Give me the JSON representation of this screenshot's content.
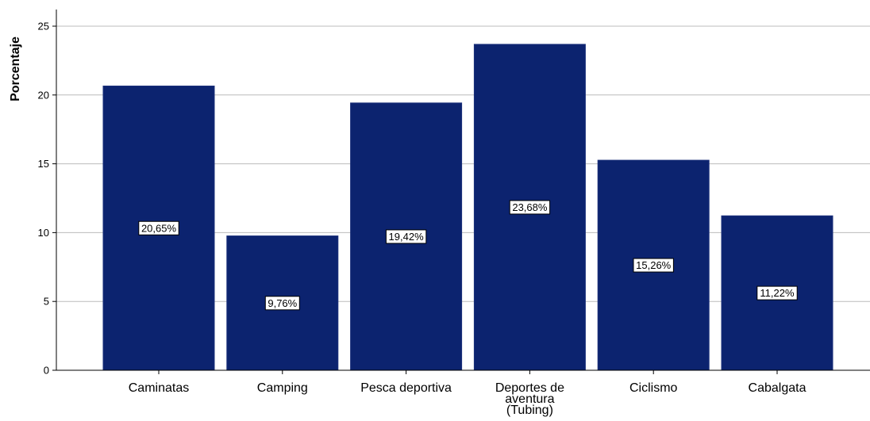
{
  "chart_data": {
    "type": "bar",
    "ylabel": "Porcentaje",
    "xlabel": "",
    "ylim": [
      0,
      25
    ],
    "yticks": [
      0,
      5,
      10,
      15,
      20,
      25
    ],
    "ytick_labels": [
      "0",
      "5",
      "10",
      "15",
      "20",
      "25"
    ],
    "grid": true,
    "categories": [
      "Caminatas",
      "Camping",
      "Pesca deportiva",
      "Deportes de aventura (Tubing)",
      "Ciclismo",
      "Cabalgata"
    ],
    "category_label_lines": [
      [
        "Caminatas"
      ],
      [
        "Camping"
      ],
      [
        "Pesca deportiva"
      ],
      [
        "Deportes de",
        "aventura",
        "(Tubing)"
      ],
      [
        "Ciclismo"
      ],
      [
        "Cabalgata"
      ]
    ],
    "values": [
      20.65,
      9.76,
      19.42,
      23.68,
      15.26,
      11.22
    ],
    "data_labels": [
      "20,65%",
      "9,76%",
      "19,42%",
      "23,68%",
      "15,26%",
      "11,22%"
    ],
    "colors": {
      "bar": "#0c236f",
      "bar_edge": "#1a2f7a",
      "grid": "#bcbcbc",
      "axis": "#000000"
    }
  }
}
